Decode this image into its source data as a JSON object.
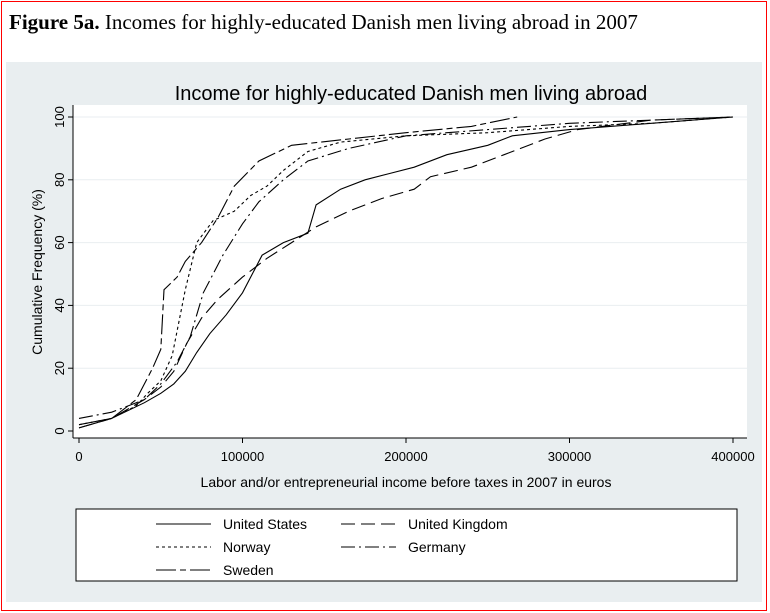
{
  "caption": {
    "prefix": "Figure 5a.",
    "text": "Incomes for highly-educated Danish men living abroad in 2007"
  },
  "chart_data": {
    "type": "line",
    "title": "Income for highly-educated Danish men living abroad",
    "xlabel": "Labor and/or entrepreneurial income before taxes in 2007 in euros",
    "ylabel": "Cumulative Frequency (%)",
    "xlim": [
      0,
      400000
    ],
    "ylim": [
      0,
      100
    ],
    "x_ticks": [
      0,
      100000,
      200000,
      300000,
      400000
    ],
    "y_ticks": [
      0,
      20,
      40,
      60,
      80,
      100
    ],
    "grid": true,
    "legend_position": "bottom",
    "series": [
      {
        "name": "United States",
        "dash": "solid",
        "points": [
          [
            0,
            2
          ],
          [
            20000,
            4
          ],
          [
            40000,
            9
          ],
          [
            50000,
            12
          ],
          [
            58000,
            15
          ],
          [
            65000,
            19
          ],
          [
            72000,
            25
          ],
          [
            80000,
            31
          ],
          [
            90000,
            37
          ],
          [
            100000,
            44
          ],
          [
            108000,
            52
          ],
          [
            112000,
            56
          ],
          [
            125000,
            60
          ],
          [
            140000,
            63
          ],
          [
            145000,
            72
          ],
          [
            160000,
            77
          ],
          [
            175000,
            80
          ],
          [
            190000,
            82
          ],
          [
            205000,
            84
          ],
          [
            225000,
            88
          ],
          [
            250000,
            91
          ],
          [
            265000,
            94
          ],
          [
            300000,
            96
          ],
          [
            350000,
            98
          ],
          [
            400000,
            100
          ]
        ]
      },
      {
        "name": "United Kingdom",
        "dash": "longdash",
        "points": [
          [
            0,
            1
          ],
          [
            20000,
            4
          ],
          [
            40000,
            10
          ],
          [
            50000,
            14
          ],
          [
            58000,
            19
          ],
          [
            66000,
            28
          ],
          [
            75000,
            36
          ],
          [
            85000,
            42
          ],
          [
            100000,
            49
          ],
          [
            115000,
            55
          ],
          [
            130000,
            60
          ],
          [
            145000,
            65
          ],
          [
            165000,
            70
          ],
          [
            185000,
            74
          ],
          [
            205000,
            77
          ],
          [
            215000,
            81
          ],
          [
            240000,
            84
          ],
          [
            260000,
            88
          ],
          [
            285000,
            93
          ],
          [
            305000,
            96
          ],
          [
            350000,
            99
          ],
          [
            400000,
            100
          ]
        ]
      },
      {
        "name": "Norway",
        "dash": "shortdash",
        "points": [
          [
            0,
            2
          ],
          [
            20000,
            4
          ],
          [
            35000,
            8
          ],
          [
            42000,
            12
          ],
          [
            50000,
            16
          ],
          [
            57000,
            24
          ],
          [
            65000,
            45
          ],
          [
            72000,
            60
          ],
          [
            82000,
            67
          ],
          [
            95000,
            70
          ],
          [
            105000,
            75
          ],
          [
            115000,
            78
          ],
          [
            125000,
            83
          ],
          [
            140000,
            89
          ],
          [
            160000,
            92
          ],
          [
            200000,
            94
          ],
          [
            250000,
            95
          ],
          [
            300000,
            97
          ],
          [
            350000,
            98
          ],
          [
            400000,
            100
          ]
        ]
      },
      {
        "name": "Germany",
        "dash": "dashdot",
        "points": [
          [
            0,
            4
          ],
          [
            20000,
            6
          ],
          [
            40000,
            10
          ],
          [
            50000,
            15
          ],
          [
            60000,
            22
          ],
          [
            68000,
            30
          ],
          [
            76000,
            44
          ],
          [
            88000,
            56
          ],
          [
            100000,
            66
          ],
          [
            110000,
            73
          ],
          [
            125000,
            80
          ],
          [
            140000,
            86
          ],
          [
            165000,
            90
          ],
          [
            200000,
            94
          ],
          [
            250000,
            96
          ],
          [
            300000,
            98
          ],
          [
            350000,
            99
          ],
          [
            400000,
            100
          ]
        ]
      },
      {
        "name": "Sweden",
        "dash": "longdashshort",
        "points": [
          [
            0,
            1
          ],
          [
            20000,
            4
          ],
          [
            35000,
            10
          ],
          [
            45000,
            20
          ],
          [
            50000,
            26
          ],
          [
            52000,
            45
          ],
          [
            60000,
            49
          ],
          [
            65000,
            54
          ],
          [
            75000,
            60
          ],
          [
            85000,
            68
          ],
          [
            95000,
            78
          ],
          [
            110000,
            86
          ],
          [
            130000,
            91
          ],
          [
            165000,
            93
          ],
          [
            200000,
            95
          ],
          [
            240000,
            97
          ],
          [
            268000,
            100
          ]
        ]
      }
    ]
  }
}
